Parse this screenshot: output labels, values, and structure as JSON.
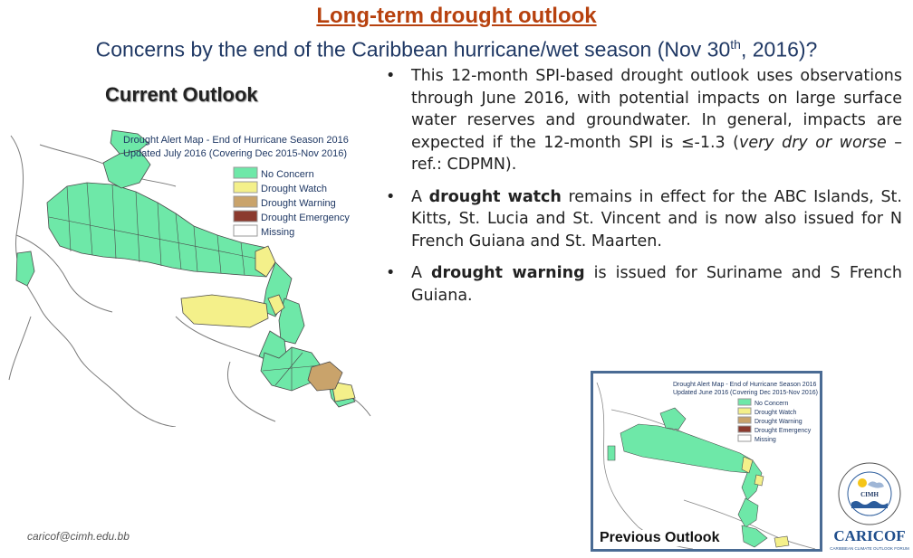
{
  "header": {
    "title": "Long-term drought outlook",
    "subtitle_pre": "Concerns by the end of the Caribbean hurricane/wet season (Nov 30",
    "subtitle_sup": "th",
    "subtitle_post": ", 2016)?"
  },
  "current_outlook": {
    "label": "Current Outlook",
    "map_title_line1": "Drought Alert Map - End of Hurricane Season 2016",
    "map_title_line2": "Updated July 2016 (Covering Dec 2015-Nov 2016)",
    "legend": [
      {
        "label": "No Concern",
        "color": "#6ee8a8"
      },
      {
        "label": "Drought Watch",
        "color": "#f4f08a"
      },
      {
        "label": "Drought Warning",
        "color": "#c9a36b"
      },
      {
        "label": "Drought Emergency",
        "color": "#8b3a2e"
      },
      {
        "label": "Missing",
        "color": "#ffffff"
      }
    ]
  },
  "bullets": [
    {
      "marker": "•",
      "text_pre": "This 12-month SPI-based drought outlook uses observations through June 2016, with potential impacts on large surface water reserves and groundwater. In general, impacts are expected if the 12-month SPI is ≤-1.3 (",
      "text_italic": "very dry or worse",
      "text_post": " – ref.: CDPMN)."
    },
    {
      "marker": "•",
      "text_pre": "A ",
      "text_bold": "drought watch",
      "text_post": "  remains in effect for the ABC Islands, St. Kitts, St. Lucia and St. Vincent and is now also issued for N French Guiana and St. Maarten."
    },
    {
      "marker": "•",
      "text_pre": "A ",
      "text_bold": "drought warning",
      "text_post": " is issued for Suriname and S French Guiana."
    }
  ],
  "previous_outlook": {
    "label": "Previous Outlook",
    "map_title_line1": "Drought Alert Map - End of Hurricane Season 2016",
    "map_title_line2": "Updated June 2016 (Covering Dec 2015-Nov 2016)",
    "legend": [
      {
        "label": "No Concern",
        "color": "#6ee8a8"
      },
      {
        "label": "Drought Watch",
        "color": "#f4f08a"
      },
      {
        "label": "Drought Warning",
        "color": "#c9a36b"
      },
      {
        "label": "Drought Emergency",
        "color": "#8b3a2e"
      },
      {
        "label": "Missing",
        "color": "#ffffff"
      }
    ]
  },
  "footer": {
    "email": "caricof@cimh.edu.bb",
    "logo_text": "CARICOF",
    "logo_badge": "CIMH",
    "logo_tagline": "CARIBBEAN CLIMATE OUTLOOK FORUM"
  }
}
